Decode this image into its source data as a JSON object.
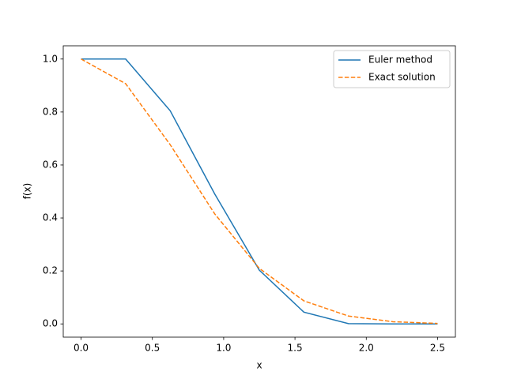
{
  "chart_data": {
    "type": "line",
    "x_label": "x",
    "y_label": "f(x)",
    "x": [
      0,
      0.3125,
      0.625,
      0.9375,
      1.25,
      1.5625,
      1.875,
      2.1875,
      2.5
    ],
    "series": [
      {
        "name": "Euler method",
        "color": "#1f77b4",
        "dash": "solid",
        "values": [
          1,
          1,
          0.8047,
          0.4904,
          0.203,
          0.0444,
          0.001,
          -0.0002,
          0.0001
        ]
      },
      {
        "name": "Exact solution",
        "color": "#ff7f0e",
        "dash": "dashed",
        "values": [
          1,
          0.907,
          0.6766,
          0.4152,
          0.2096,
          0.087,
          0.0297,
          0.0083,
          0.0019
        ]
      }
    ],
    "xlim": [
      -0.125,
      2.625
    ],
    "ylim": [
      -0.05,
      1.05
    ],
    "xticks": [
      {
        "value": 0,
        "label": "0.0"
      },
      0.5,
      {
        "value": 1,
        "label": "1.0"
      },
      1.5,
      {
        "value": 2,
        "label": "2.0"
      },
      2.5
    ],
    "yticks": [
      {
        "value": 0,
        "label": "0.0"
      },
      0.2,
      0.4,
      0.6,
      0.8,
      {
        "value": 1,
        "label": "1.0"
      }
    ],
    "legend": "upper right",
    "grid": false
  }
}
